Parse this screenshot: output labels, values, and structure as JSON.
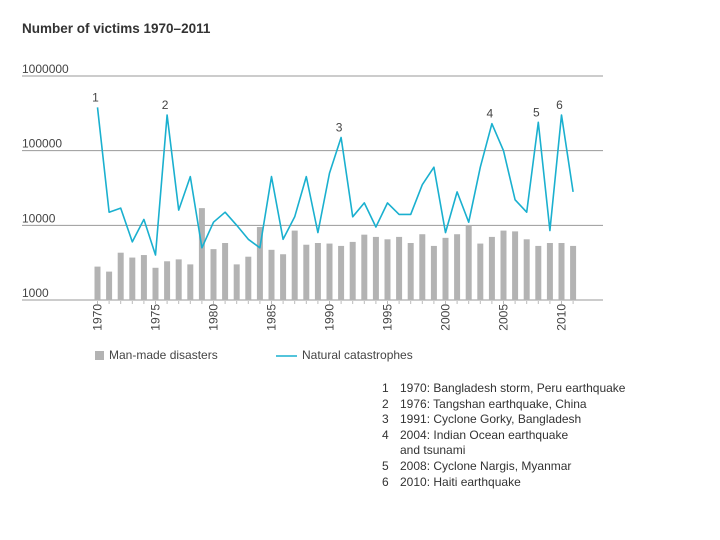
{
  "chart_data": {
    "type": "bar+line",
    "title": "Number of victims 1970–2011",
    "y_scale": "log",
    "ylim": [
      1000,
      1000000
    ],
    "y_ticks": [
      {
        "value": 1000000,
        "label": "1000000"
      },
      {
        "value": 100000,
        "label": "100000"
      },
      {
        "value": 10000,
        "label": "10000"
      },
      {
        "value": 1000,
        "label": "1000"
      }
    ],
    "x_tick_labels": [
      {
        "year": 1970,
        "label": "1970"
      },
      {
        "year": 1975,
        "label": "1975"
      },
      {
        "year": 1980,
        "label": "1980"
      },
      {
        "year": 1985,
        "label": "1985"
      },
      {
        "year": 1990,
        "label": "1990"
      },
      {
        "year": 1995,
        "label": "1995"
      },
      {
        "year": 2000,
        "label": "2000"
      },
      {
        "year": 2005,
        "label": "2005"
      },
      {
        "year": 2010,
        "label": "2010"
      }
    ],
    "x": [
      1970,
      1971,
      1972,
      1973,
      1974,
      1975,
      1976,
      1977,
      1978,
      1979,
      1980,
      1981,
      1982,
      1983,
      1984,
      1985,
      1986,
      1987,
      1988,
      1989,
      1990,
      1991,
      1992,
      1993,
      1994,
      1995,
      1996,
      1997,
      1998,
      1999,
      2000,
      2001,
      2002,
      2003,
      2004,
      2005,
      2006,
      2007,
      2008,
      2009,
      2010,
      2011
    ],
    "series": [
      {
        "name": "Man-made disasters",
        "kind": "bar",
        "color": "#b3b3b3",
        "values": [
          2800,
          2400,
          4300,
          3700,
          4000,
          2700,
          3300,
          3500,
          3000,
          17000,
          4800,
          5800,
          3000,
          3800,
          9500,
          4700,
          4100,
          8500,
          5500,
          5800,
          5700,
          5300,
          6000,
          7500,
          7000,
          6500,
          7000,
          5800,
          7600,
          5300,
          6800,
          7600,
          10000,
          5700,
          7000,
          8500,
          8300,
          6500,
          5300,
          5800,
          5800,
          5300
        ]
      },
      {
        "name": "Natural catastrophes",
        "kind": "line",
        "color": "#1ab0cf",
        "values": [
          380000,
          15000,
          17000,
          6000,
          12000,
          4000,
          300000,
          16000,
          45000,
          5000,
          11000,
          15000,
          10000,
          6500,
          5000,
          45000,
          6500,
          13000,
          45000,
          8000,
          50000,
          150000,
          13000,
          20000,
          9500,
          20000,
          14000,
          14000,
          35000,
          60000,
          8000,
          28000,
          11000,
          60000,
          230000,
          100000,
          22000,
          15000,
          240000,
          8500,
          300000,
          28000
        ]
      }
    ],
    "annotations": [
      {
        "year": 1970,
        "label": "1"
      },
      {
        "year": 1976,
        "label": "2"
      },
      {
        "year": 1991,
        "label": "3"
      },
      {
        "year": 2004,
        "label": "4"
      },
      {
        "year": 2008,
        "label": "5"
      },
      {
        "year": 2010,
        "label": "6"
      }
    ],
    "legend": [
      {
        "label": "Man-made disasters",
        "kind": "box",
        "color": "#b3b3b3"
      },
      {
        "label": "Natural catastrophes",
        "kind": "line",
        "color": "#1ab0cf"
      }
    ],
    "legend_position": "bottom"
  },
  "notes": [
    {
      "num": "1",
      "text": "1970: Bangladesh storm, Peru earthquake"
    },
    {
      "num": "2",
      "text": "1976: Tangshan earthquake, China"
    },
    {
      "num": "3",
      "text": "1991: Cyclone Gorky, Bangladesh"
    },
    {
      "num": "4",
      "text": "2004: Indian Ocean earthquake and tsunami"
    },
    {
      "num": "5",
      "text": "2008: Cyclone Nargis, Myanmar"
    },
    {
      "num": "6",
      "text": "2010: Haiti earthquake"
    }
  ]
}
